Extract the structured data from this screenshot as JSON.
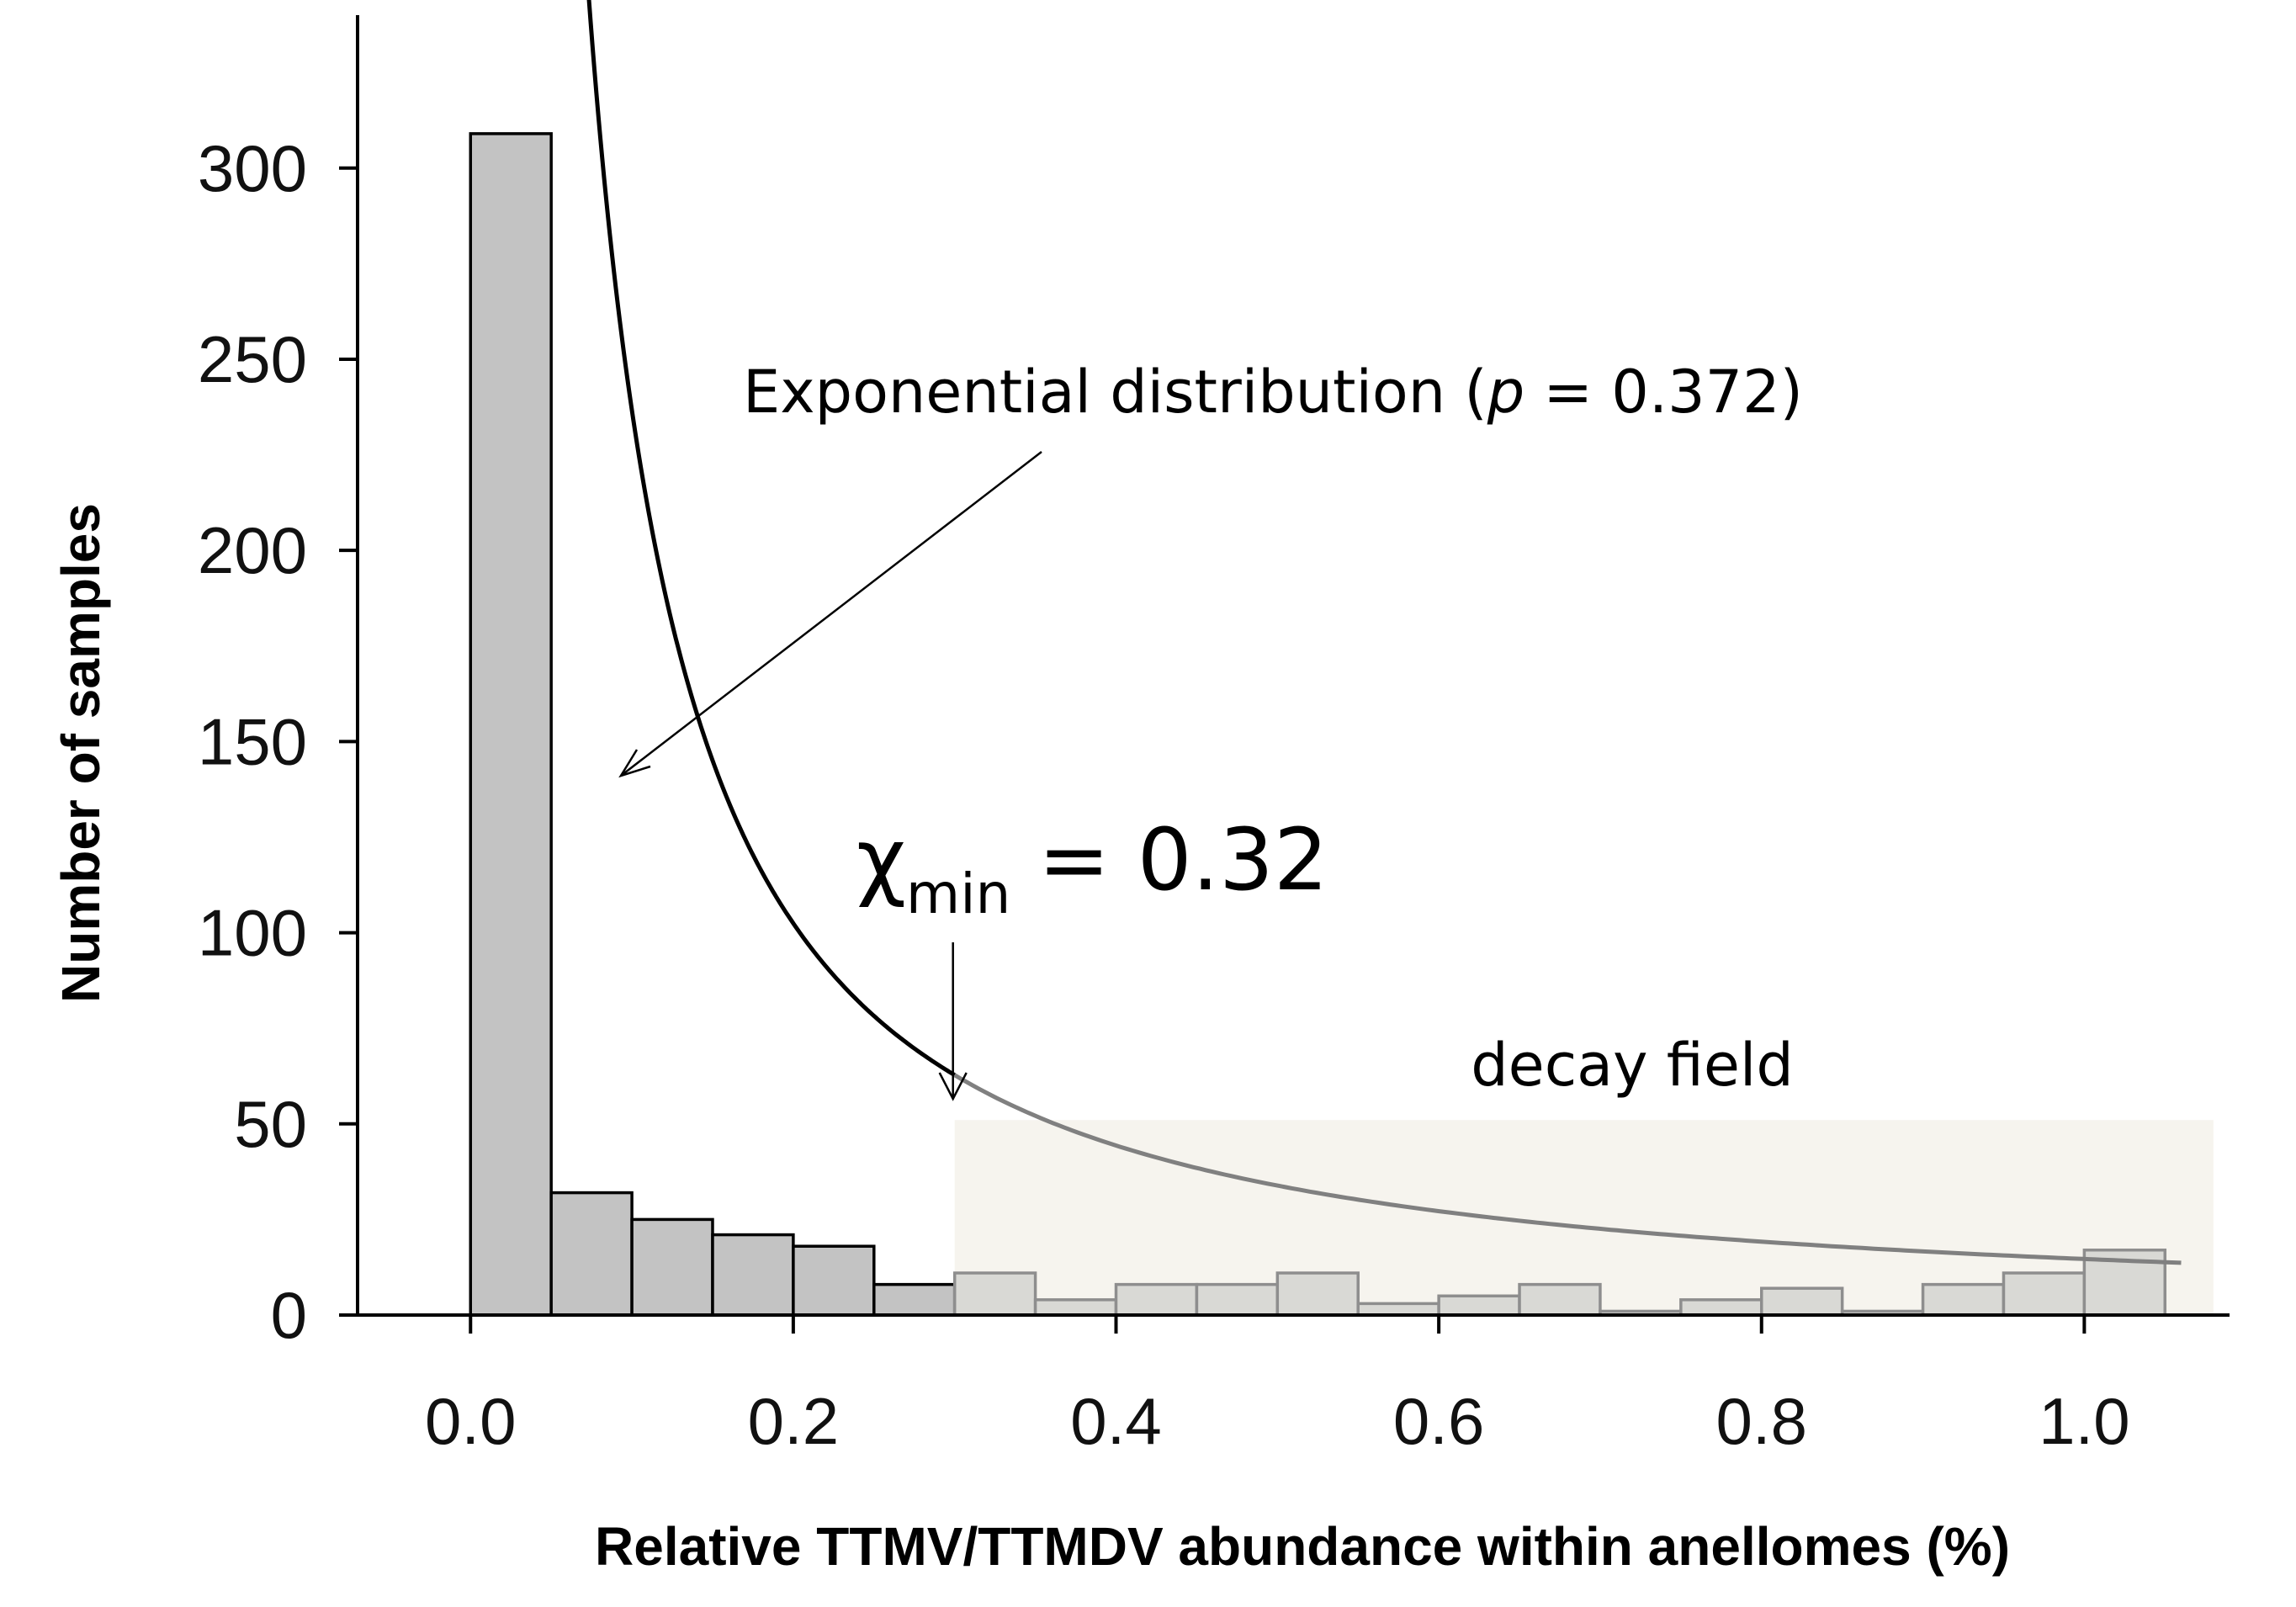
{
  "chart_data": {
    "type": "bar",
    "subtype": "histogram",
    "xlabel": "Relative TTMV/TTMDV abundance within anellomes (%)",
    "ylabel": "Number of samples",
    "xlim": [
      -0.07,
      1.09
    ],
    "ylim": [
      0,
      340
    ],
    "xticks": [
      0.0,
      0.2,
      0.4,
      0.6,
      0.8,
      1.0
    ],
    "xtick_labels": [
      "0.0",
      "0.2",
      "0.4",
      "0.6",
      "0.8",
      "1.0"
    ],
    "yticks": [
      0,
      50,
      100,
      150,
      200,
      250,
      300
    ],
    "ytick_labels": [
      "0",
      "50",
      "100",
      "150",
      "200",
      "250",
      "300"
    ],
    "bin_width": 0.05,
    "bins": [
      {
        "start": 0.0,
        "value": 309,
        "in_decay_field": false
      },
      {
        "start": 0.05,
        "value": 32,
        "in_decay_field": false
      },
      {
        "start": 0.1,
        "value": 25,
        "in_decay_field": false
      },
      {
        "start": 0.15,
        "value": 21,
        "in_decay_field": false
      },
      {
        "start": 0.2,
        "value": 18,
        "in_decay_field": false
      },
      {
        "start": 0.25,
        "value": 8,
        "in_decay_field": false
      },
      {
        "start": 0.3,
        "value": 11,
        "in_decay_field": true
      },
      {
        "start": 0.35,
        "value": 4,
        "in_decay_field": true
      },
      {
        "start": 0.4,
        "value": 8,
        "in_decay_field": true
      },
      {
        "start": 0.45,
        "value": 8,
        "in_decay_field": true
      },
      {
        "start": 0.5,
        "value": 11,
        "in_decay_field": true
      },
      {
        "start": 0.55,
        "value": 3,
        "in_decay_field": true
      },
      {
        "start": 0.6,
        "value": 5,
        "in_decay_field": true
      },
      {
        "start": 0.65,
        "value": 8,
        "in_decay_field": true
      },
      {
        "start": 0.7,
        "value": 1,
        "in_decay_field": true
      },
      {
        "start": 0.75,
        "value": 4,
        "in_decay_field": true
      },
      {
        "start": 0.8,
        "value": 7,
        "in_decay_field": true
      },
      {
        "start": 0.85,
        "value": 1,
        "in_decay_field": true
      },
      {
        "start": 0.9,
        "value": 8,
        "in_decay_field": true
      },
      {
        "start": 0.95,
        "value": 11,
        "in_decay_field": true
      },
      {
        "start": 1.0,
        "value": 17,
        "in_decay_field": true
      }
    ],
    "fit_curve": {
      "name": "Exponential distribution",
      "x_start": 0.06,
      "x_end": 1.06,
      "coef": 14.66,
      "exponent": 1.208
    },
    "decay_field": {
      "label": "decay field",
      "x_start": 0.3,
      "x_end": 1.08,
      "y_top": 51
    },
    "annotations": {
      "fit_label_prefix": "Exponential distribution (",
      "fit_label_p": "p",
      "fit_label_suffix": " = 0.372)",
      "chi_symbol": "χ",
      "chi_subscript": "min",
      "chi_value_text": " = 0.32",
      "chi_min_x": 0.3
    },
    "colors": {
      "bar_fill": "#c3c3c3",
      "bar_fill_faded": "#d9d9d5",
      "bar_stroke": "#000000",
      "bar_stroke_faded": "#8e8e8e",
      "decay_field_fill": "#f6f4ee",
      "curve": "#000000",
      "curve_faded": "#808080"
    }
  }
}
